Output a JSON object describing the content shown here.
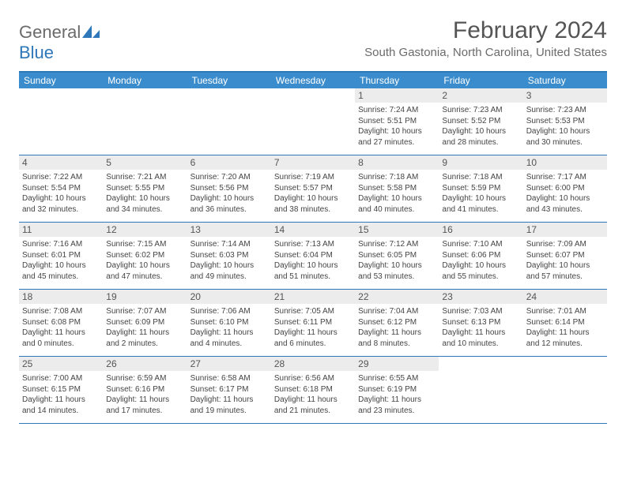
{
  "logo": {
    "word1": "General",
    "word2": "Blue",
    "color1": "#6b6b6b",
    "color2": "#2e77b8"
  },
  "title": "February 2024",
  "location": "South Gastonia, North Carolina, United States",
  "colors": {
    "header_bg": "#3b8ccc",
    "border": "#2e77b8",
    "daynum_bg": "#ececec",
    "text": "#444444"
  },
  "day_labels": [
    "Sunday",
    "Monday",
    "Tuesday",
    "Wednesday",
    "Thursday",
    "Friday",
    "Saturday"
  ],
  "weeks": [
    [
      {
        "n": "",
        "sr": "",
        "ss": "",
        "dl": ""
      },
      {
        "n": "",
        "sr": "",
        "ss": "",
        "dl": ""
      },
      {
        "n": "",
        "sr": "",
        "ss": "",
        "dl": ""
      },
      {
        "n": "",
        "sr": "",
        "ss": "",
        "dl": ""
      },
      {
        "n": "1",
        "sr": "Sunrise: 7:24 AM",
        "ss": "Sunset: 5:51 PM",
        "dl": "Daylight: 10 hours and 27 minutes."
      },
      {
        "n": "2",
        "sr": "Sunrise: 7:23 AM",
        "ss": "Sunset: 5:52 PM",
        "dl": "Daylight: 10 hours and 28 minutes."
      },
      {
        "n": "3",
        "sr": "Sunrise: 7:23 AM",
        "ss": "Sunset: 5:53 PM",
        "dl": "Daylight: 10 hours and 30 minutes."
      }
    ],
    [
      {
        "n": "4",
        "sr": "Sunrise: 7:22 AM",
        "ss": "Sunset: 5:54 PM",
        "dl": "Daylight: 10 hours and 32 minutes."
      },
      {
        "n": "5",
        "sr": "Sunrise: 7:21 AM",
        "ss": "Sunset: 5:55 PM",
        "dl": "Daylight: 10 hours and 34 minutes."
      },
      {
        "n": "6",
        "sr": "Sunrise: 7:20 AM",
        "ss": "Sunset: 5:56 PM",
        "dl": "Daylight: 10 hours and 36 minutes."
      },
      {
        "n": "7",
        "sr": "Sunrise: 7:19 AM",
        "ss": "Sunset: 5:57 PM",
        "dl": "Daylight: 10 hours and 38 minutes."
      },
      {
        "n": "8",
        "sr": "Sunrise: 7:18 AM",
        "ss": "Sunset: 5:58 PM",
        "dl": "Daylight: 10 hours and 40 minutes."
      },
      {
        "n": "9",
        "sr": "Sunrise: 7:18 AM",
        "ss": "Sunset: 5:59 PM",
        "dl": "Daylight: 10 hours and 41 minutes."
      },
      {
        "n": "10",
        "sr": "Sunrise: 7:17 AM",
        "ss": "Sunset: 6:00 PM",
        "dl": "Daylight: 10 hours and 43 minutes."
      }
    ],
    [
      {
        "n": "11",
        "sr": "Sunrise: 7:16 AM",
        "ss": "Sunset: 6:01 PM",
        "dl": "Daylight: 10 hours and 45 minutes."
      },
      {
        "n": "12",
        "sr": "Sunrise: 7:15 AM",
        "ss": "Sunset: 6:02 PM",
        "dl": "Daylight: 10 hours and 47 minutes."
      },
      {
        "n": "13",
        "sr": "Sunrise: 7:14 AM",
        "ss": "Sunset: 6:03 PM",
        "dl": "Daylight: 10 hours and 49 minutes."
      },
      {
        "n": "14",
        "sr": "Sunrise: 7:13 AM",
        "ss": "Sunset: 6:04 PM",
        "dl": "Daylight: 10 hours and 51 minutes."
      },
      {
        "n": "15",
        "sr": "Sunrise: 7:12 AM",
        "ss": "Sunset: 6:05 PM",
        "dl": "Daylight: 10 hours and 53 minutes."
      },
      {
        "n": "16",
        "sr": "Sunrise: 7:10 AM",
        "ss": "Sunset: 6:06 PM",
        "dl": "Daylight: 10 hours and 55 minutes."
      },
      {
        "n": "17",
        "sr": "Sunrise: 7:09 AM",
        "ss": "Sunset: 6:07 PM",
        "dl": "Daylight: 10 hours and 57 minutes."
      }
    ],
    [
      {
        "n": "18",
        "sr": "Sunrise: 7:08 AM",
        "ss": "Sunset: 6:08 PM",
        "dl": "Daylight: 11 hours and 0 minutes."
      },
      {
        "n": "19",
        "sr": "Sunrise: 7:07 AM",
        "ss": "Sunset: 6:09 PM",
        "dl": "Daylight: 11 hours and 2 minutes."
      },
      {
        "n": "20",
        "sr": "Sunrise: 7:06 AM",
        "ss": "Sunset: 6:10 PM",
        "dl": "Daylight: 11 hours and 4 minutes."
      },
      {
        "n": "21",
        "sr": "Sunrise: 7:05 AM",
        "ss": "Sunset: 6:11 PM",
        "dl": "Daylight: 11 hours and 6 minutes."
      },
      {
        "n": "22",
        "sr": "Sunrise: 7:04 AM",
        "ss": "Sunset: 6:12 PM",
        "dl": "Daylight: 11 hours and 8 minutes."
      },
      {
        "n": "23",
        "sr": "Sunrise: 7:03 AM",
        "ss": "Sunset: 6:13 PM",
        "dl": "Daylight: 11 hours and 10 minutes."
      },
      {
        "n": "24",
        "sr": "Sunrise: 7:01 AM",
        "ss": "Sunset: 6:14 PM",
        "dl": "Daylight: 11 hours and 12 minutes."
      }
    ],
    [
      {
        "n": "25",
        "sr": "Sunrise: 7:00 AM",
        "ss": "Sunset: 6:15 PM",
        "dl": "Daylight: 11 hours and 14 minutes."
      },
      {
        "n": "26",
        "sr": "Sunrise: 6:59 AM",
        "ss": "Sunset: 6:16 PM",
        "dl": "Daylight: 11 hours and 17 minutes."
      },
      {
        "n": "27",
        "sr": "Sunrise: 6:58 AM",
        "ss": "Sunset: 6:17 PM",
        "dl": "Daylight: 11 hours and 19 minutes."
      },
      {
        "n": "28",
        "sr": "Sunrise: 6:56 AM",
        "ss": "Sunset: 6:18 PM",
        "dl": "Daylight: 11 hours and 21 minutes."
      },
      {
        "n": "29",
        "sr": "Sunrise: 6:55 AM",
        "ss": "Sunset: 6:19 PM",
        "dl": "Daylight: 11 hours and 23 minutes."
      },
      {
        "n": "",
        "sr": "",
        "ss": "",
        "dl": ""
      },
      {
        "n": "",
        "sr": "",
        "ss": "",
        "dl": ""
      }
    ]
  ]
}
